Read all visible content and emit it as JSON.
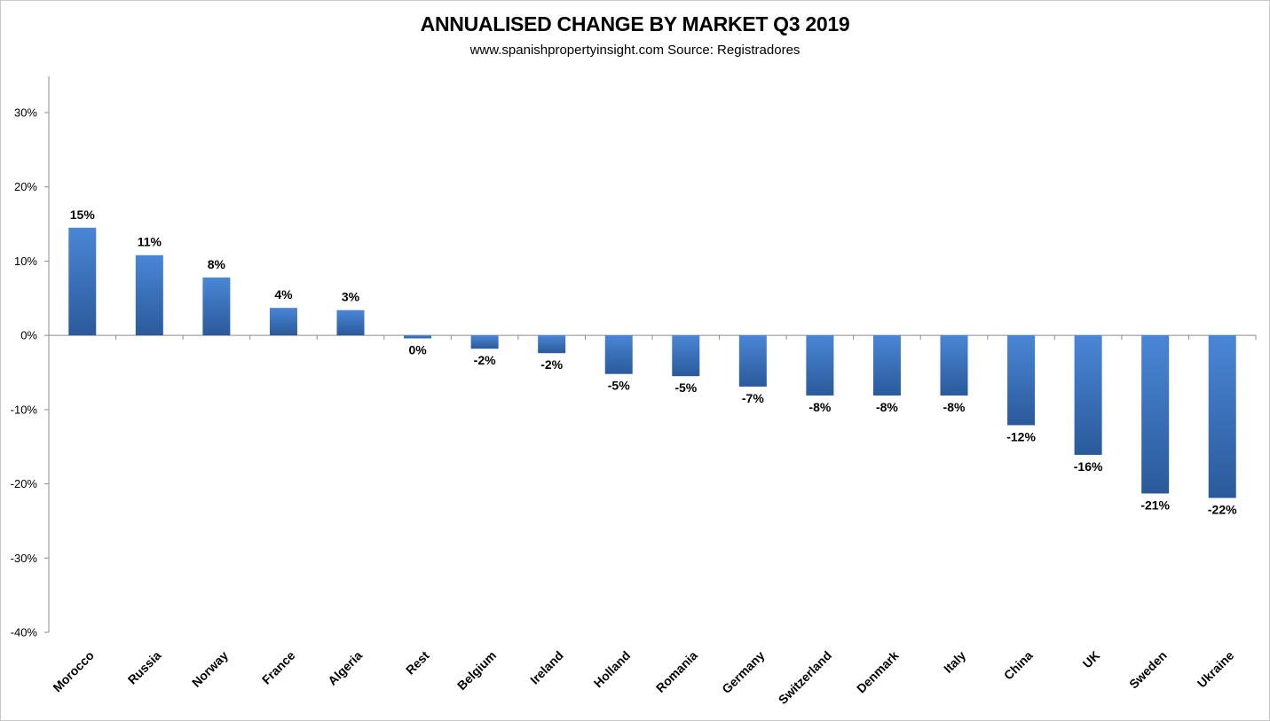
{
  "title": "ANNUALISED CHANGE BY MARKET Q3 2019",
  "subtitle": "www.spanishpropertyinsight.com Source: Registradores",
  "colors": {
    "bar_top": "#4a86d6",
    "bar_bottom": "#2a5a9a",
    "axis": "#8c8c8c"
  },
  "chart_data": {
    "type": "bar",
    "title": "ANNUALISED CHANGE BY MARKET Q3 2019",
    "subtitle": "www.spanishpropertyinsight.com Source: Registradores",
    "xlabel": "",
    "ylabel": "",
    "ylim": [
      -40,
      30
    ],
    "yticks": [
      30,
      20,
      10,
      0,
      -10,
      -20,
      -30,
      -40
    ],
    "ytick_labels": [
      "30%",
      "20%",
      "10%",
      "0%",
      "-10%",
      "-20%",
      "-30%",
      "-40%"
    ],
    "grid": false,
    "legend": false,
    "categories": [
      "Morocco",
      "Russia",
      "Norway",
      "France",
      "Algeria",
      "Rest",
      "Belgium",
      "Ireland",
      "Holland",
      "Romania",
      "Germany",
      "Switzerland",
      "Denmark",
      "Italy",
      "China",
      "UK",
      "Sweden",
      "Ukraine"
    ],
    "values": [
      14.5,
      10.8,
      7.8,
      3.7,
      3.4,
      -0.4,
      -1.8,
      -2.4,
      -5.2,
      -5.5,
      -6.9,
      -8.1,
      -8.1,
      -8.1,
      -12.1,
      -16.1,
      -21.3,
      -21.9
    ],
    "data_labels": [
      "15%",
      "11%",
      "8%",
      "4%",
      "3%",
      "0%",
      "-2%",
      "-2%",
      "-5%",
      "-5%",
      "-7%",
      "-8%",
      "-8%",
      "-8%",
      "-12%",
      "-16%",
      "-21%",
      "-22%"
    ]
  }
}
